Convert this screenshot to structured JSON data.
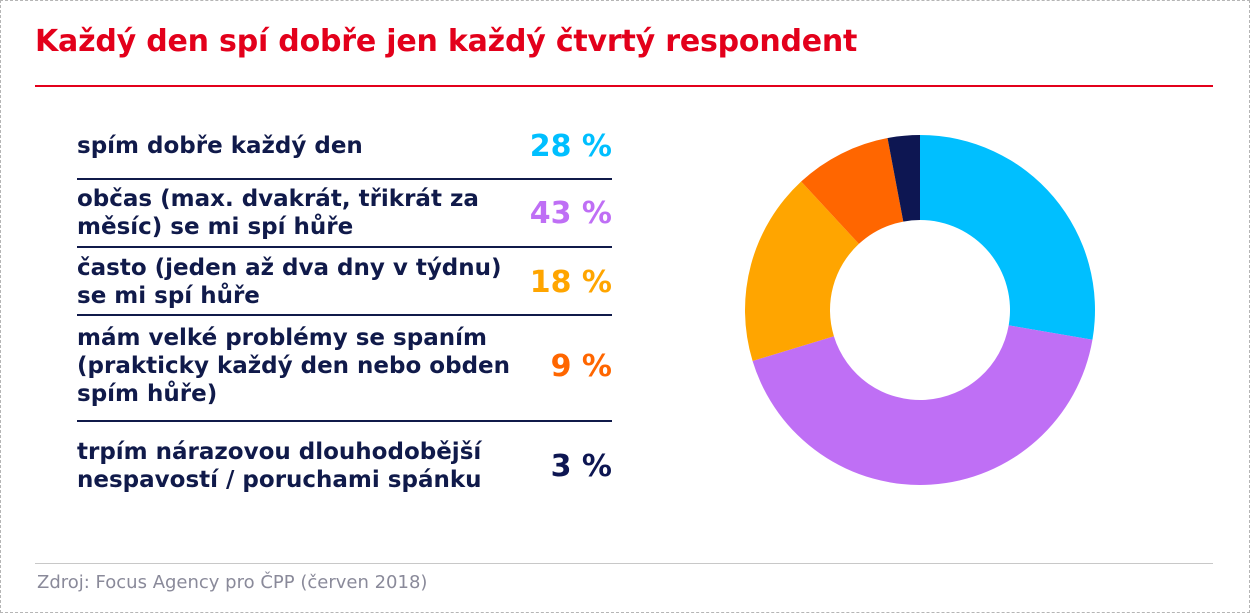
{
  "title": "Každý den spí dobře jen každý čtvrtý respondent",
  "source": "Zdroj: Focus Agency pro ČPP (červen 2018)",
  "chart_data": {
    "type": "pie",
    "donut": true,
    "categories": [
      "spím dobře každý den",
      "občas (max. dvakrát, třikrát za měsíc) se mi spí hůře",
      "často (jeden až dva dny v týdnu) se mi spí hůře",
      "mám velké problémy se spaním (prakticky každý den nebo obden spím hůře)",
      "trpím nárazovou dlouhodobější nespavostí / poruchami spánku"
    ],
    "values": [
      28,
      43,
      18,
      9,
      3
    ],
    "labels": [
      "28 %",
      "43 %",
      "18 %",
      "9 %",
      "3 %"
    ],
    "colors": [
      "#00bfff",
      "#bf6ff5",
      "#ffa500",
      "#ff6600",
      "#0d1652"
    ],
    "legend_placement": "left"
  }
}
